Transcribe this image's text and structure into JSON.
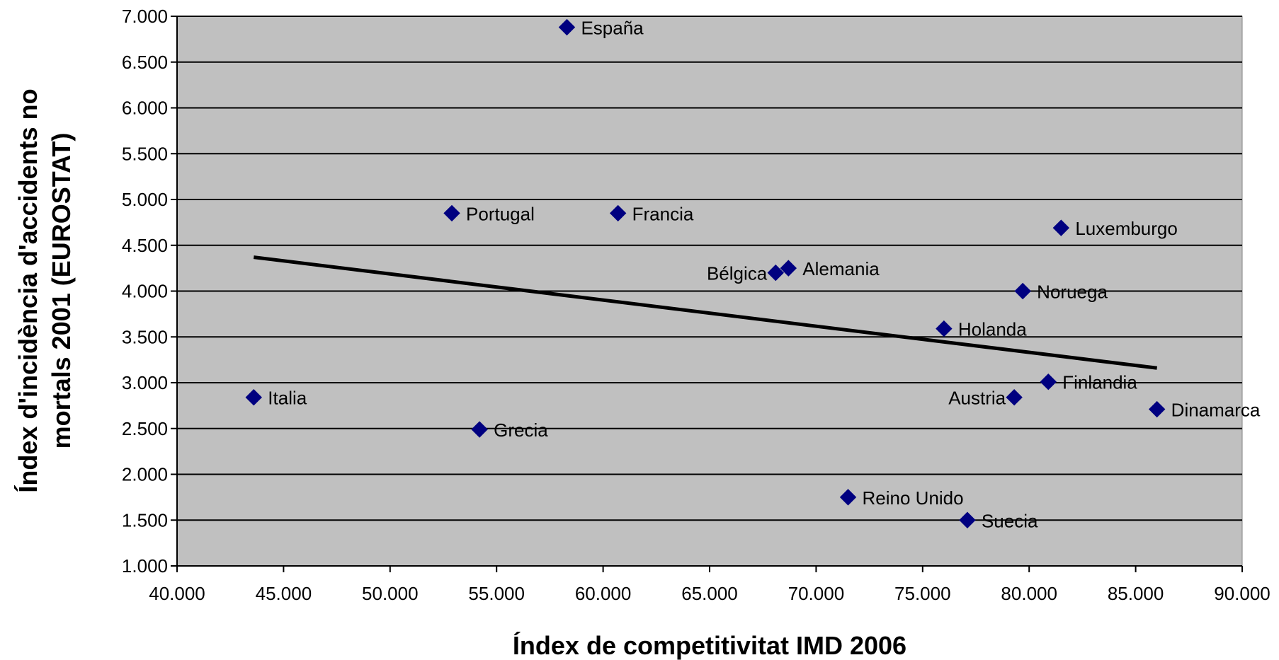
{
  "chart_data": {
    "type": "scatter",
    "title": "",
    "xlabel": "Índex de competitivitat IMD 2006",
    "ylabel_lines": [
      "Índex d'incidència d'accidents no",
      "mortals 2001 (EUROSTAT)"
    ],
    "xlim": [
      40,
      90
    ],
    "ylim": [
      1000,
      7000
    ],
    "x_ticks": [
      40,
      45,
      50,
      55,
      60,
      65,
      70,
      75,
      80,
      85,
      90
    ],
    "x_tick_labels": [
      "40.000",
      "45.000",
      "50.000",
      "55.000",
      "60.000",
      "65.000",
      "70.000",
      "75.000",
      "80.000",
      "85.000",
      "90.000"
    ],
    "y_ticks": [
      1000,
      1500,
      2000,
      2500,
      3000,
      3500,
      4000,
      4500,
      5000,
      5500,
      6000,
      6500,
      7000
    ],
    "y_tick_labels": [
      "1.000",
      "1.500",
      "2.000",
      "2.500",
      "3.000",
      "3.500",
      "4.000",
      "4.500",
      "5.000",
      "5.500",
      "6.000",
      "6.500",
      "7.000"
    ],
    "grid": "horizontal",
    "legend": "none",
    "colors": {
      "plot_background": "#c0c0c0",
      "marker": "#000080",
      "trendline": "#000000",
      "grid": "#000000"
    },
    "points": [
      {
        "label": "España",
        "x": 58.3,
        "y": 6880,
        "label_side": "right"
      },
      {
        "label": "Portugal",
        "x": 52.9,
        "y": 4850,
        "label_side": "right"
      },
      {
        "label": "Francia",
        "x": 60.7,
        "y": 4850,
        "label_side": "right"
      },
      {
        "label": "Luxemburgo",
        "x": 81.5,
        "y": 4690,
        "label_side": "right"
      },
      {
        "label": "Bélgica",
        "x": 68.1,
        "y": 4200,
        "label_side": "left"
      },
      {
        "label": "Alemania",
        "x": 68.7,
        "y": 4250,
        "label_side": "right"
      },
      {
        "label": "Noruega",
        "x": 79.7,
        "y": 4000,
        "label_side": "right"
      },
      {
        "label": "Holanda",
        "x": 76.0,
        "y": 3590,
        "label_side": "right"
      },
      {
        "label": "Italia",
        "x": 43.6,
        "y": 2840,
        "label_side": "right"
      },
      {
        "label": "Finlandia",
        "x": 80.9,
        "y": 3010,
        "label_side": "right"
      },
      {
        "label": "Austria",
        "x": 79.3,
        "y": 2840,
        "label_side": "left"
      },
      {
        "label": "Dinamarca",
        "x": 86.0,
        "y": 2710,
        "label_side": "right"
      },
      {
        "label": "Grecia",
        "x": 54.2,
        "y": 2490,
        "label_side": "right"
      },
      {
        "label": "Reino Unido",
        "x": 71.5,
        "y": 1750,
        "label_side": "right"
      },
      {
        "label": "Suecia",
        "x": 77.1,
        "y": 1500,
        "label_side": "right"
      }
    ],
    "trendline": {
      "type": "linear",
      "x": [
        43.6,
        86.0
      ],
      "y": [
        4370,
        3160
      ]
    }
  }
}
